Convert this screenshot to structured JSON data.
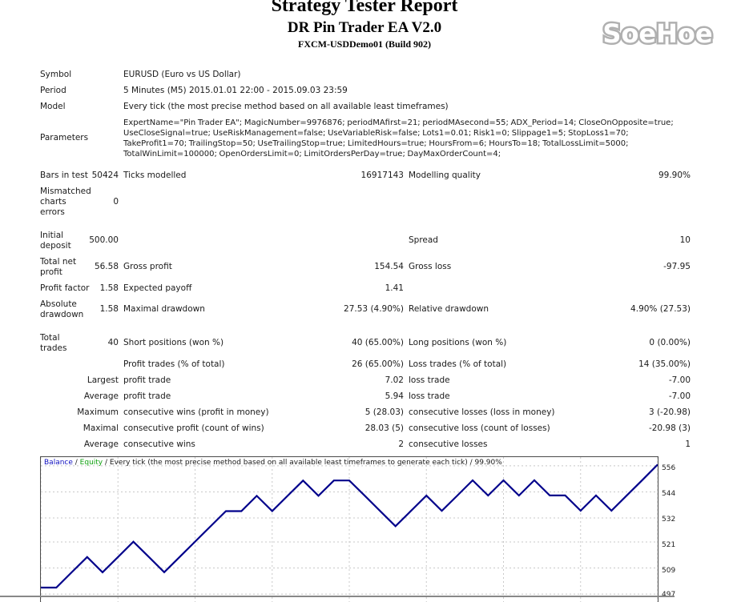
{
  "header": {
    "title": "Strategy Tester Report",
    "ea_name": "DR Pin Trader EA V2.0",
    "server": "FXCM-USDDemo01 (Build 902)"
  },
  "logo": {
    "text": "SoeHoe",
    "color": "#b0b0b0"
  },
  "rows": {
    "symbol": {
      "label": "Symbol",
      "value": "EURUSD (Euro vs US Dollar)"
    },
    "period": {
      "label": "Period",
      "value": "5 Minutes (M5) 2015.01.01 22:00 - 2015.09.03 23:59"
    },
    "model": {
      "label": "Model",
      "value": "Every tick (the most precise method based on all available least timeframes)"
    },
    "parameters": {
      "label": "Parameters",
      "value": "ExpertName=\"Pin Trader EA\"; MagicNumber=9976876; periodMAfirst=21; periodMAsecond=55; ADX_Period=14; CloseOnOpposite=true; UseCloseSignal=true; UseRiskManagement=false; UseVariableRisk=false; Lots1=0.01; Risk1=0; Slippage1=5; StopLoss1=70; TakeProfit1=70; TrailingStop=50; UseTrailingStop=true; LimitedHours=true; HoursFrom=6; HoursTo=18; TotalLossLimit=5000; TotalWinLimit=100000; OpenOrdersLimit=0; LimitOrdersPerDay=true; DayMaxOrderCount=4;"
    },
    "bars": {
      "label": "Bars in test",
      "value": "50424",
      "label2": "Ticks modelled",
      "value2": "16917143",
      "label3": "Modelling quality",
      "value3": "99.90%"
    },
    "mismatched": {
      "label": "Mismatched charts errors",
      "value": "0"
    },
    "initial": {
      "label": "Initial deposit",
      "value": "500.00",
      "label3": "Spread",
      "value3": "10"
    },
    "net": {
      "label": "Total net profit",
      "value": "56.58",
      "label2": "Gross profit",
      "value2": "154.54",
      "label3": "Gross loss",
      "value3": "-97.95"
    },
    "pf": {
      "label": "Profit factor",
      "value": "1.58",
      "label2": "Expected payoff",
      "value2": "1.41"
    },
    "dd": {
      "label": "Absolute drawdown",
      "value": "1.58",
      "label2": "Maximal drawdown",
      "value2": "27.53 (4.90%)",
      "label3": "Relative drawdown",
      "value3": "4.90% (27.53)"
    },
    "trades": {
      "label": "Total trades",
      "value": "40",
      "label2": "Short positions (won %)",
      "value2": "40 (65.00%)",
      "label3": "Long positions (won %)",
      "value3": "0 (0.00%)"
    },
    "pt": {
      "label2": "Profit trades (% of total)",
      "value2": "26 (65.00%)",
      "label3": "Loss trades (% of total)",
      "value3": "14 (35.00%)"
    },
    "largest": {
      "label": "Largest",
      "label2": "profit trade",
      "value2": "7.02",
      "label3": "loss trade",
      "value3": "-7.00"
    },
    "average": {
      "label": "Average",
      "label2": "profit trade",
      "value2": "5.94",
      "label3": "loss trade",
      "value3": "-7.00"
    },
    "maximum": {
      "label": "Maximum",
      "label2": "consecutive wins (profit in money)",
      "value2": "5 (28.03)",
      "label3": "consecutive losses (loss in money)",
      "value3": "3 (-20.98)"
    },
    "maximal": {
      "label": "Maximal",
      "label2": "consecutive profit (count of wins)",
      "value2": "28.03 (5)",
      "label3": "consecutive loss (count of losses)",
      "value3": "-20.98 (3)"
    },
    "avgcons": {
      "label": "Average",
      "label2": "consecutive wins",
      "value2": "2",
      "label3": "consecutive losses",
      "value3": "1"
    }
  },
  "chart_legend": {
    "balance": "Balance",
    "sep1": " / ",
    "equity": "Equity",
    "rest": " / Every tick (the most precise method based on all available least timeframes to generate each tick) / 99.90%",
    "balance_color": "#1010c0",
    "equity_color": "#10a010"
  },
  "chart_data": {
    "type": "line",
    "title": "",
    "xlabel": "",
    "ylabel": "",
    "y_ticks": [
      "556",
      "544",
      "532",
      "521",
      "509",
      "497"
    ],
    "ylim": [
      493,
      560
    ],
    "grid": true,
    "series": [
      {
        "name": "Balance",
        "color": "#00008b",
        "x": [
          0,
          1,
          2,
          3,
          4,
          5,
          6,
          7,
          8,
          9,
          10,
          11,
          12,
          13,
          14,
          15,
          16,
          17,
          18,
          19,
          20,
          21,
          22,
          23,
          24,
          25,
          26,
          27,
          28,
          29,
          30,
          31,
          32,
          33,
          34,
          35,
          36,
          37,
          38,
          39,
          40
        ],
        "values": [
          500.0,
          500.0,
          507.02,
          514.04,
          507.04,
          514.06,
          521.08,
          514.08,
          507.08,
          514.1,
          521.12,
          528.14,
          535.16,
          535.16,
          542.18,
          535.18,
          542.2,
          549.22,
          542.22,
          549.24,
          549.24,
          542.24,
          535.24,
          528.24,
          535.26,
          542.28,
          535.28,
          542.3,
          549.32,
          542.32,
          549.34,
          542.34,
          549.36,
          542.36,
          542.36,
          535.36,
          542.38,
          535.38,
          542.4,
          549.42,
          556.58
        ]
      }
    ]
  }
}
